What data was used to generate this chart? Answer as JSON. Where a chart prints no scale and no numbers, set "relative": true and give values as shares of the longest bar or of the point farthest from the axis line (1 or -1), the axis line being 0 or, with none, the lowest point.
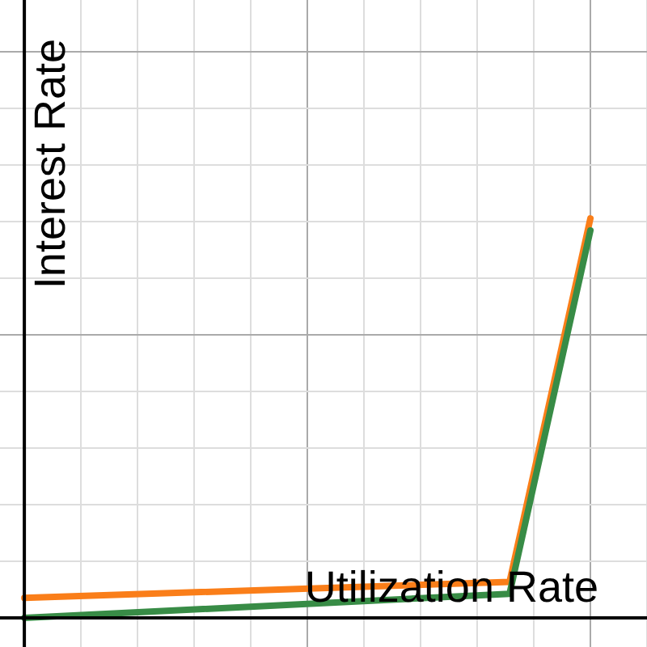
{
  "chart_data": {
    "type": "line",
    "xlabel": "Utilization Rate",
    "ylabel": "Interest Rate",
    "relative": true,
    "categories": [
      null,
      null,
      null,
      null,
      null,
      null,
      null,
      null
    ],
    "grid": true,
    "legend": false,
    "marker": "none",
    "line_style": "solid",
    "series": [
      {
        "color": "#388c46",
        "values": [
          0,
          null,
          null,
          null,
          null,
          null,
          0.06,
          0.97
        ]
      },
      {
        "color": "#fa7e19",
        "values": [
          0.05,
          null,
          null,
          null,
          null,
          null,
          0.09,
          1
        ]
      }
    ]
  }
}
